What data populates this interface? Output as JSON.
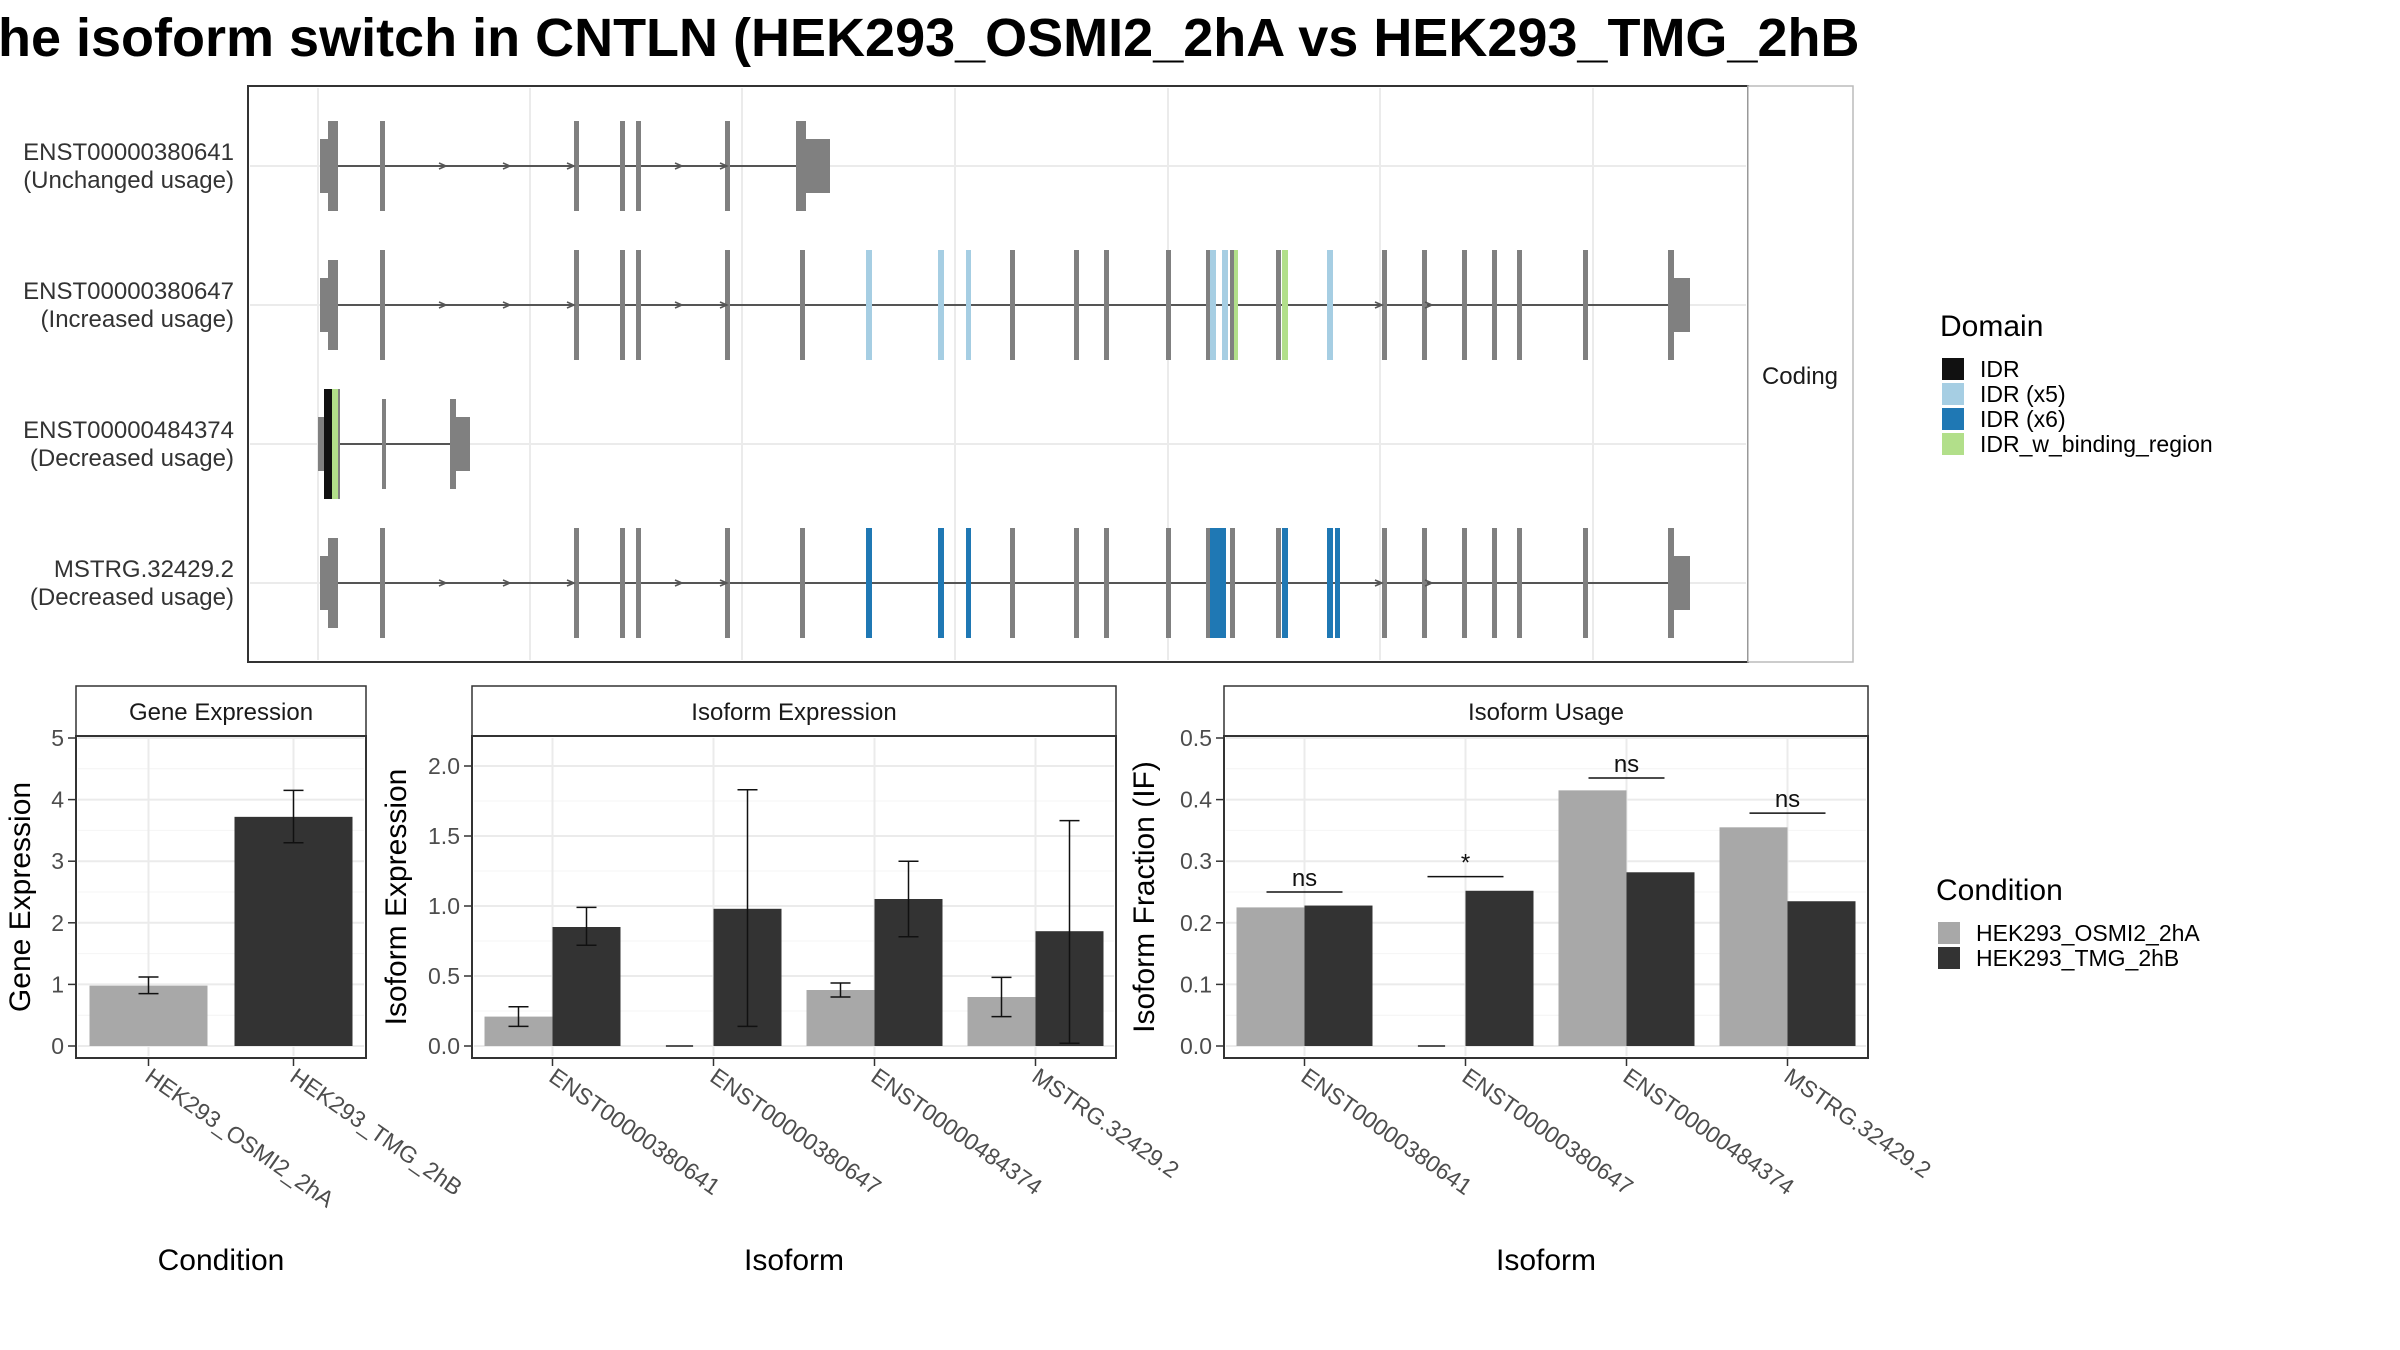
{
  "title": "he isoform switch in CNTLN (HEK293_OSMI2_2hA vs HEK293_TMG_2hB",
  "colors": {
    "exon": "#808080",
    "line": "#555555",
    "panel_border": "#333333",
    "grid": "#ebebeb",
    "cond_a": "#a8a8a8",
    "cond_b": "#333333",
    "IDR": "#111111",
    "IDR_x5": "#a6cee3",
    "IDR_x6": "#1f78b4",
    "IDR_w_binding_region": "#b2df8a"
  },
  "structure": {
    "facet_label": "Coding",
    "transcripts": [
      {
        "id": "ENST00000380641",
        "usage": "(Unchanged usage)"
      },
      {
        "id": "ENST00000380647",
        "usage": "(Increased usage)"
      },
      {
        "id": "ENST00000484374",
        "usage": "(Decreased usage)"
      },
      {
        "id": "MSTRG.32429.2",
        "usage": "(Decreased usage)"
      }
    ]
  },
  "legend_domain": {
    "title": "Domain",
    "items": [
      {
        "label": "IDR",
        "color": "#111111"
      },
      {
        "label": "IDR (x5)",
        "color": "#a6cee3"
      },
      {
        "label": "IDR (x6)",
        "color": "#1f78b4"
      },
      {
        "label": "IDR_w_binding_region",
        "color": "#b2df8a"
      }
    ]
  },
  "legend_condition": {
    "title": "Condition",
    "items": [
      {
        "label": "HEK293_OSMI2_2hA",
        "color": "#a8a8a8"
      },
      {
        "label": "HEK293_TMG_2hB",
        "color": "#333333"
      }
    ]
  },
  "chart_data": [
    {
      "type": "bar",
      "title": "Gene Expression",
      "xlabel": "Condition",
      "ylabel": "Gene Expression",
      "ylim": [
        0,
        5
      ],
      "yticks": [
        0,
        1,
        2,
        3,
        4,
        5
      ],
      "categories": [
        "HEK293_OSMI2_2hA",
        "HEK293_TMG_2hB"
      ],
      "values": [
        0.98,
        3.72
      ],
      "error": [
        [
          0.85,
          1.12
        ],
        [
          3.3,
          4.15
        ]
      ]
    },
    {
      "type": "bar",
      "title": "Isoform Expression",
      "xlabel": "Isoform",
      "ylabel": "Isoform Expression",
      "ylim": [
        0,
        2.2
      ],
      "yticks": [
        0.0,
        0.5,
        1.0,
        1.5,
        2.0
      ],
      "categories": [
        "ENST00000380641",
        "ENST00000380647",
        "ENST00000484374",
        "MSTRG.32429.2"
      ],
      "series": [
        {
          "name": "HEK293_OSMI2_2hA",
          "values": [
            0.21,
            0.0,
            0.4,
            0.35
          ],
          "error": [
            [
              0.14,
              0.28
            ],
            [
              0.0,
              0.0
            ],
            [
              0.35,
              0.45
            ],
            [
              0.21,
              0.49
            ]
          ]
        },
        {
          "name": "HEK293_TMG_2hB",
          "values": [
            0.85,
            0.98,
            1.05,
            0.82
          ],
          "error": [
            [
              0.72,
              0.99
            ],
            [
              0.14,
              1.83
            ],
            [
              0.78,
              1.32
            ],
            [
              0.02,
              1.61
            ]
          ]
        }
      ]
    },
    {
      "type": "bar",
      "title": "Isoform Usage",
      "xlabel": "Isoform",
      "ylabel": "Isoform Fraction (IF)",
      "ylim": [
        0,
        0.5
      ],
      "yticks": [
        0.0,
        0.1,
        0.2,
        0.3,
        0.4,
        0.5
      ],
      "categories": [
        "ENST00000380641",
        "ENST00000380647",
        "ENST00000484374",
        "MSTRG.32429.2"
      ],
      "series": [
        {
          "name": "HEK293_OSMI2_2hA",
          "values": [
            0.225,
            0.0,
            0.415,
            0.355
          ]
        },
        {
          "name": "HEK293_TMG_2hB",
          "values": [
            0.228,
            0.252,
            0.282,
            0.235
          ]
        }
      ],
      "significance": [
        {
          "label": "ns",
          "y": 0.25
        },
        {
          "label": "*",
          "y": 0.275
        },
        {
          "label": "ns",
          "y": 0.435
        },
        {
          "label": "ns",
          "y": 0.378
        }
      ]
    }
  ]
}
